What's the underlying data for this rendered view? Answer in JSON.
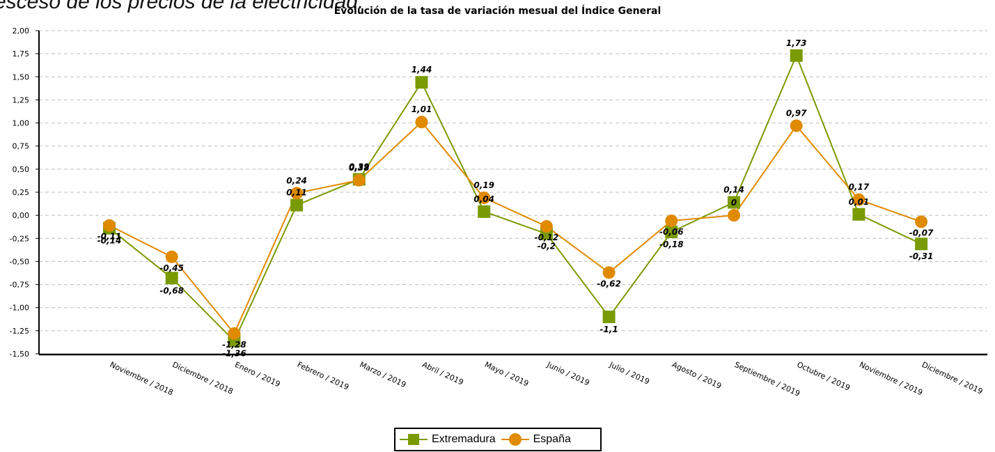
{
  "background_text": "esceso de los  precios de la electricidad.",
  "chart_data": {
    "type": "line",
    "title": "Evolución de la tasa de variación mesual del Índice General",
    "categories": [
      "Noviembre / 2018",
      "Diciembre / 2018",
      "Enero / 2019",
      "Febrero / 2019",
      "Marzo / 2019",
      "Abril / 2019",
      "Mayo / 2019",
      "Junio / 2019",
      "Julio / 2019",
      "Agosto / 2019",
      "Septiembre / 2019",
      "Octubre / 2019",
      "Noviembre / 2019",
      "Diciembre / 2019"
    ],
    "ylim": [
      -1.5,
      2.0
    ],
    "y_ticks": [
      "2,00",
      "1,75",
      "1,50",
      "1,25",
      "1,00",
      "0,75",
      "0,50",
      "0,25",
      "0,00",
      "-0,25",
      "-0,50",
      "-0,75",
      "-1,00",
      "-1,25",
      "-1,50"
    ],
    "grid": true,
    "legend_position": "bottom",
    "series": [
      {
        "name": "Extremadura",
        "color": "#7a9a01",
        "marker": "square",
        "values": [
          -0.14,
          -0.68,
          -1.36,
          0.11,
          0.39,
          1.44,
          0.04,
          -0.2,
          -1.1,
          -0.18,
          0.14,
          1.73,
          0.01,
          -0.31
        ],
        "labels": [
          "-0,14",
          "-0,68",
          "-1,36",
          "0,11",
          "0,39",
          "1,44",
          "0,04",
          "-0,2",
          "-1,1",
          "-0,18",
          "0,14",
          "1,73",
          "0,01",
          "-0,31"
        ]
      },
      {
        "name": "España",
        "color": "#e08a00",
        "marker": "circle",
        "values": [
          -0.11,
          -0.45,
          -1.28,
          0.24,
          0.38,
          1.01,
          0.19,
          -0.12,
          -0.62,
          -0.06,
          0.0,
          0.97,
          0.17,
          -0.07
        ],
        "labels": [
          "-0,11",
          "-0,45",
          "-1,28",
          "0,24",
          "0,38",
          "1,01",
          "0,19",
          "-0,12",
          "-0,62",
          "-0,06",
          "0",
          "0,97",
          "0,17",
          "-0,07"
        ]
      }
    ]
  }
}
